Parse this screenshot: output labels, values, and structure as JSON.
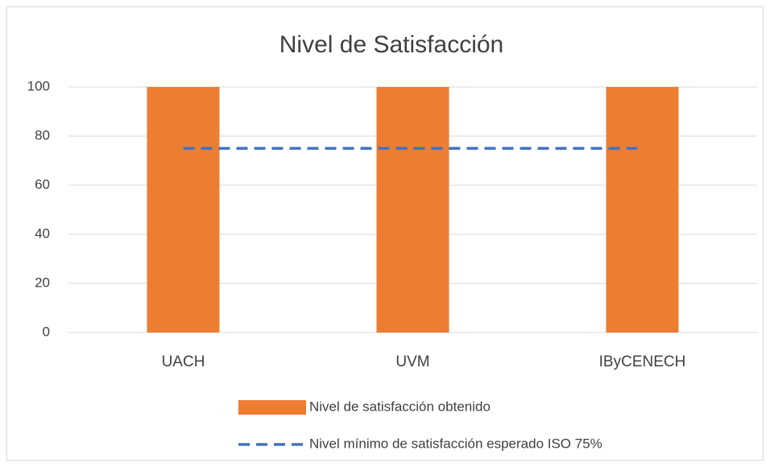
{
  "chart_data": {
    "type": "bar",
    "title": "Nivel de Satisfacción",
    "categories": [
      "UACH",
      "UVM",
      "IByCENECH"
    ],
    "series": [
      {
        "name": "Nivel de satisfacción obtenido",
        "type": "bar",
        "color": "#ed7d31",
        "values": [
          100,
          100,
          100
        ]
      },
      {
        "name": "Nivel mínimo de satisfacción esperado ISO 75%",
        "type": "line",
        "dashed": true,
        "color": "#4472c4",
        "values": [
          75,
          75,
          75
        ]
      }
    ],
    "ylim": [
      0,
      100
    ],
    "yticks": [
      0,
      20,
      40,
      60,
      80,
      100
    ],
    "grid": true,
    "legend": "bottom"
  }
}
